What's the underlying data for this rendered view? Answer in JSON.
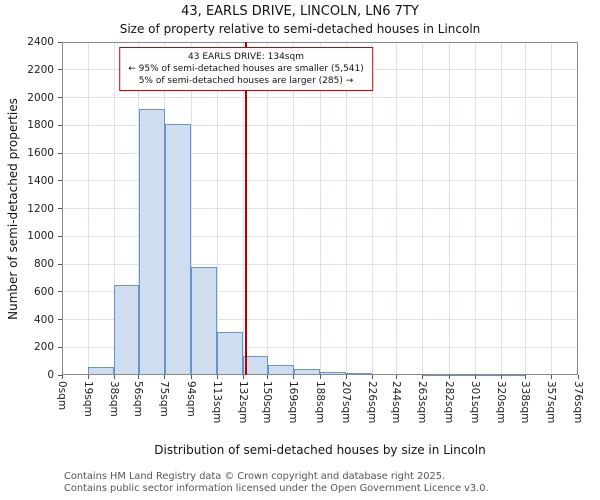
{
  "title": "43, EARLS DRIVE, LINCOLN, LN6 7TY",
  "subtitle": "Size of property relative to semi-detached houses in Lincoln",
  "annotation": {
    "line1": "43 EARLS DRIVE: 134sqm",
    "line2": "← 95% of semi-detached houses are smaller (5,541)",
    "line3": "5% of semi-detached houses are larger (285) →",
    "border_color": "#cc0000"
  },
  "chart_data": {
    "type": "bar",
    "title": "43, EARLS DRIVE, LINCOLN, LN6 7TY — Size of property relative to semi-detached houses in Lincoln",
    "xlabel": "Distribution of semi-detached houses by size in Lincoln",
    "ylabel": "Number of semi-detached properties",
    "bin_edges_sqm": [
      0,
      19,
      38,
      56,
      75,
      94,
      113,
      132,
      150,
      169,
      188,
      207,
      226,
      244,
      263,
      282,
      301,
      320,
      338,
      357,
      376
    ],
    "x_tick_labels": [
      "0sqm",
      "19sqm",
      "38sqm",
      "56sqm",
      "75sqm",
      "94sqm",
      "113sqm",
      "132sqm",
      "150sqm",
      "169sqm",
      "188sqm",
      "207sqm",
      "226sqm",
      "244sqm",
      "263sqm",
      "282sqm",
      "301sqm",
      "320sqm",
      "338sqm",
      "357sqm",
      "376sqm"
    ],
    "values": [
      0,
      60,
      650,
      1920,
      1810,
      780,
      310,
      140,
      75,
      40,
      20,
      12,
      8,
      5,
      3,
      2,
      1,
      1,
      0,
      0
    ],
    "y_ticks": [
      0,
      200,
      400,
      600,
      800,
      1000,
      1200,
      1400,
      1600,
      1800,
      2000,
      2200,
      2400
    ],
    "ylim": [
      0,
      2400
    ],
    "xlim_sqm": [
      0,
      376
    ],
    "grid": true,
    "legend": "none",
    "marker_value_sqm": 134,
    "marker_color": "#b30000",
    "bar_fill": "#cfddf1",
    "bar_border": "#6b93c7",
    "grid_color": "#dce2f0"
  },
  "footer": {
    "line1": "Contains HM Land Registry data © Crown copyright and database right 2025.",
    "line2": "Contains public sector information licensed under the Open Government Licence v3.0."
  }
}
